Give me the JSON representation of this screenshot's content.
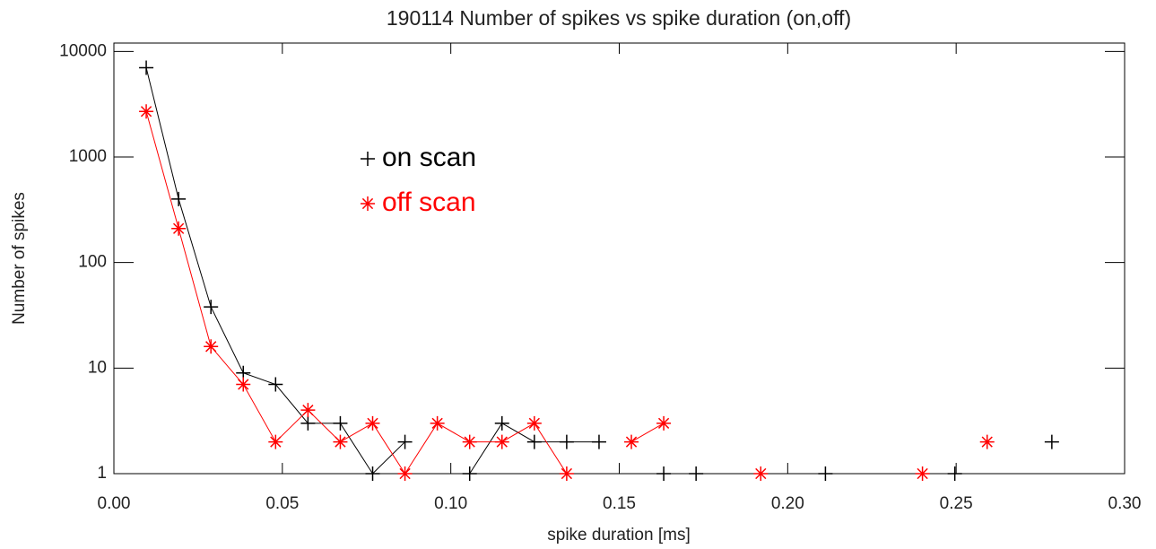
{
  "chart_data": {
    "type": "line",
    "title": "190114 Number of spikes vs spike duration (on,off)",
    "x_label": "spike duration [ms]",
    "y_label": "Number of spikes",
    "log_y": true,
    "xlim": [
      0,
      0.3
    ],
    "ylim": [
      1,
      12000
    ],
    "xticks": [
      {
        "value": 0,
        "label": "0.00"
      },
      {
        "value": 0.05,
        "label": "0.05"
      },
      {
        "value": 0.1,
        "label": "0.10"
      },
      {
        "value": 0.15,
        "label": "0.15"
      },
      {
        "value": 0.2,
        "label": "0.20"
      },
      {
        "value": 0.25,
        "label": "0.25"
      },
      {
        "value": 0.3,
        "label": "0.30"
      }
    ],
    "yticks": [
      1,
      10,
      100,
      1000,
      10000
    ],
    "series": [
      {
        "name": "on scan",
        "color": "#000000",
        "marker": "plus",
        "x": [
          0.0096,
          0.0192,
          0.0288,
          0.0384,
          0.048,
          0.0576,
          0.0672,
          0.0768,
          0.0864,
          0.096,
          0.1056,
          0.1152,
          0.1248,
          0.1344,
          0.144,
          0.1536,
          0.1632,
          0.1728,
          0.1824,
          0.2112,
          0.2208,
          0.2496,
          0.2592,
          0.2784
        ],
        "values": [
          7000,
          400,
          38,
          9,
          7,
          3,
          3,
          1,
          2,
          null,
          1,
          3,
          2,
          2,
          2,
          null,
          1,
          1,
          null,
          1,
          null,
          1,
          null,
          2
        ]
      },
      {
        "name": "off scan",
        "color": "#ff0000",
        "marker": "asterisk",
        "x": [
          0.0096,
          0.0192,
          0.0288,
          0.0384,
          0.048,
          0.0576,
          0.0672,
          0.0768,
          0.0864,
          0.096,
          0.1056,
          0.1152,
          0.1248,
          0.1344,
          0.144,
          0.1536,
          0.1632,
          0.1728,
          0.192,
          0.2016,
          0.24,
          0.2496,
          0.2592
        ],
        "values": [
          2700,
          210,
          16,
          7,
          2,
          4,
          2,
          3,
          1,
          3,
          2,
          2,
          3,
          1,
          null,
          2,
          3,
          null,
          1,
          null,
          1,
          null,
          2
        ]
      }
    ]
  }
}
